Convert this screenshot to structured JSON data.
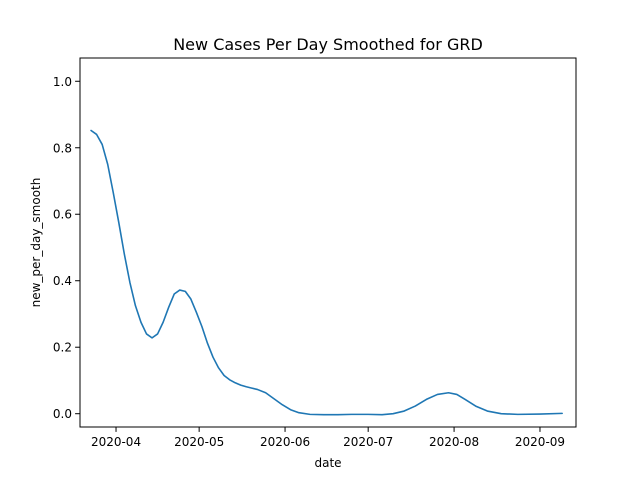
{
  "chart_data": {
    "type": "line",
    "title": "New Cases Per Day Smoothed for GRD",
    "xlabel": "date",
    "ylabel": "new_per_day_smooth",
    "xlim": [
      "2020-03-19",
      "2020-09-14"
    ],
    "ylim": [
      -0.04,
      1.07
    ],
    "grid": false,
    "x_ticks": [
      "2020-04-01",
      "2020-05-01",
      "2020-06-01",
      "2020-07-01",
      "2020-08-01",
      "2020-09-01"
    ],
    "x_tick_labels": [
      "2020-04",
      "2020-05",
      "2020-06",
      "2020-07",
      "2020-08",
      "2020-09"
    ],
    "y_ticks": [
      0.0,
      0.2,
      0.4,
      0.6,
      0.8,
      1.0
    ],
    "y_tick_labels": [
      "0.0",
      "0.2",
      "0.4",
      "0.6",
      "0.8",
      "1.0"
    ],
    "series": [
      {
        "color": "#1f77b4",
        "x": [
          "2020-03-23",
          "2020-03-25",
          "2020-03-27",
          "2020-03-29",
          "2020-03-31",
          "2020-04-02",
          "2020-04-04",
          "2020-04-06",
          "2020-04-08",
          "2020-04-10",
          "2020-04-12",
          "2020-04-14",
          "2020-04-16",
          "2020-04-18",
          "2020-04-20",
          "2020-04-22",
          "2020-04-24",
          "2020-04-26",
          "2020-04-28",
          "2020-04-30",
          "2020-05-02",
          "2020-05-04",
          "2020-05-06",
          "2020-05-08",
          "2020-05-10",
          "2020-05-12",
          "2020-05-14",
          "2020-05-16",
          "2020-05-18",
          "2020-05-20",
          "2020-05-22",
          "2020-05-25",
          "2020-05-28",
          "2020-05-31",
          "2020-06-03",
          "2020-06-06",
          "2020-06-10",
          "2020-06-15",
          "2020-06-20",
          "2020-06-25",
          "2020-07-01",
          "2020-07-06",
          "2020-07-10",
          "2020-07-14",
          "2020-07-18",
          "2020-07-22",
          "2020-07-26",
          "2020-07-30",
          "2020-08-02",
          "2020-08-05",
          "2020-08-09",
          "2020-08-13",
          "2020-08-18",
          "2020-08-24",
          "2020-09-01",
          "2020-09-09"
        ],
        "y": [
          0.852,
          0.84,
          0.81,
          0.75,
          0.665,
          0.575,
          0.48,
          0.395,
          0.325,
          0.275,
          0.24,
          0.228,
          0.24,
          0.275,
          0.32,
          0.36,
          0.372,
          0.368,
          0.345,
          0.305,
          0.262,
          0.212,
          0.17,
          0.138,
          0.115,
          0.102,
          0.093,
          0.086,
          0.081,
          0.077,
          0.073,
          0.063,
          0.045,
          0.027,
          0.012,
          0.003,
          -0.002,
          -0.003,
          -0.003,
          -0.002,
          -0.002,
          -0.003,
          0.0,
          0.008,
          0.023,
          0.043,
          0.058,
          0.063,
          0.058,
          0.043,
          0.022,
          0.008,
          0.0,
          -0.002,
          -0.001,
          0.001
        ]
      }
    ]
  }
}
